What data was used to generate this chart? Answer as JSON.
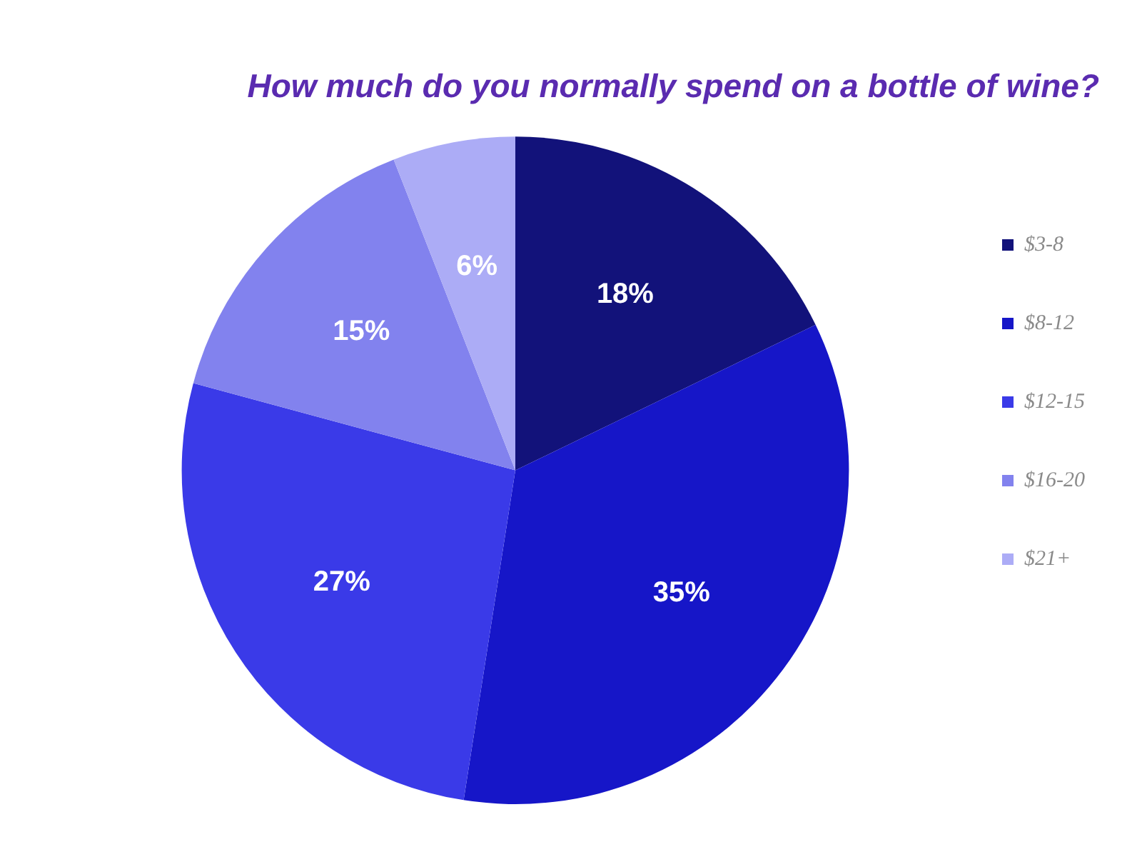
{
  "chart_data": {
    "type": "pie",
    "title": "How much do you normally spend on a bottle of wine?",
    "categories": [
      "$3-8",
      "$8-12",
      "$12-15",
      "$16-20",
      "$21+"
    ],
    "values": [
      18,
      35,
      27,
      15,
      6
    ],
    "colors": [
      "#12127a",
      "#1616c8",
      "#3a3ae8",
      "#8282ee",
      "#acacf6"
    ],
    "value_labels": [
      "18%",
      "35%",
      "27%",
      "15%",
      "6%"
    ],
    "legend": "right"
  }
}
